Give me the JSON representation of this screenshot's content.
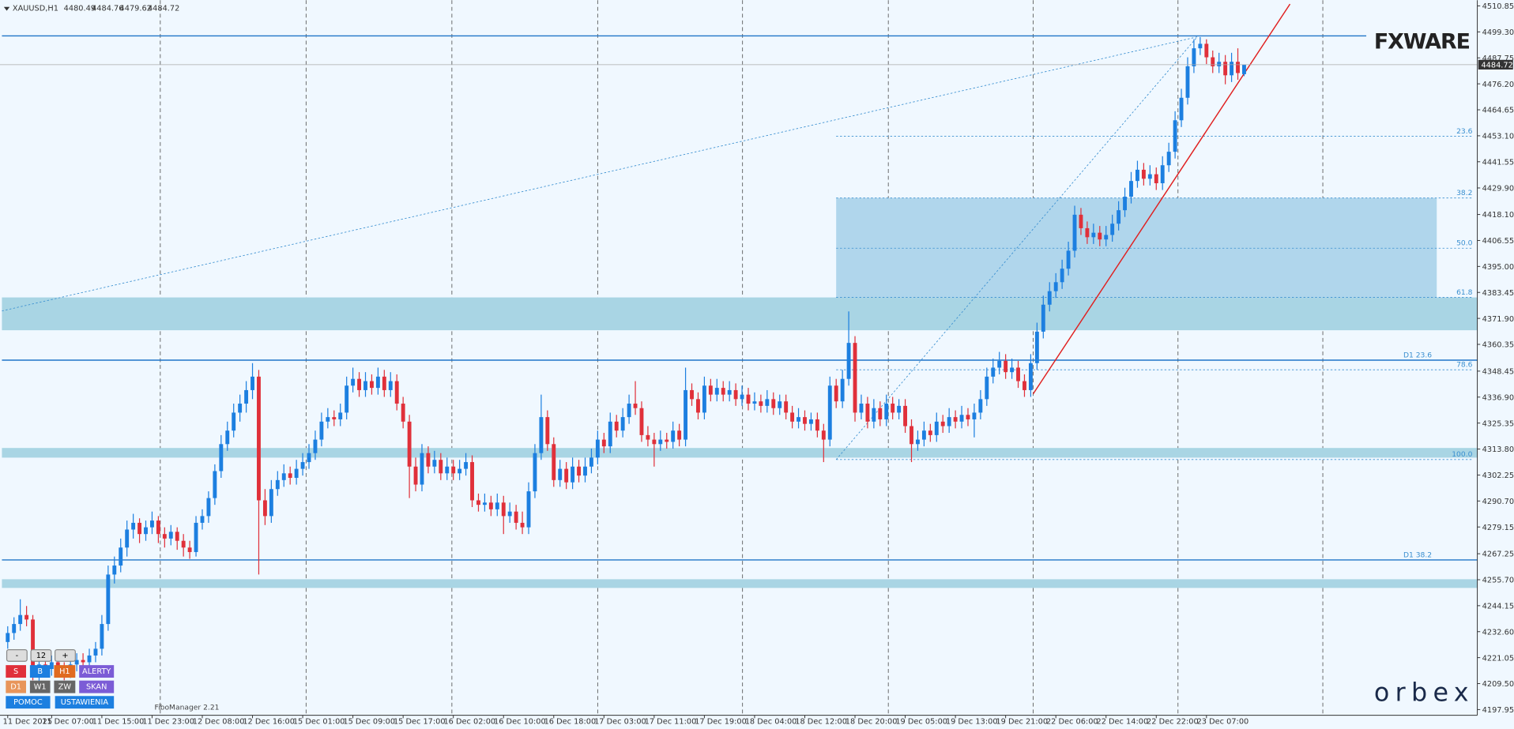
{
  "chart_data": {
    "type": "candlestick",
    "symbol": "XAUUSD,H1",
    "bull_color": "#1c7fe0",
    "bear_color": "#e0303a",
    "ylim": [
      4195.4,
      4513.4
    ],
    "yticks": [
      {
        "value": 4510.85,
        "label": "4510.85"
      },
      {
        "value": 4499.3,
        "label": "4499.30"
      },
      {
        "value": 4487.75,
        "label": "4487.75"
      },
      {
        "value": 4476.2,
        "label": "4476.20"
      },
      {
        "value": 4464.65,
        "label": "4464.65"
      },
      {
        "value": 4453.1,
        "label": "4453.10"
      },
      {
        "value": 4441.55,
        "label": "4441.55"
      },
      {
        "value": 4429.9,
        "label": "4429.90"
      },
      {
        "value": 4418.1,
        "label": "4418.10"
      },
      {
        "value": 4406.55,
        "label": "4406.55"
      },
      {
        "value": 4395,
        "label": "4395.00"
      },
      {
        "value": 4383.45,
        "label": "4383.45"
      },
      {
        "value": 4371.9,
        "label": "4371.90"
      },
      {
        "value": 4360.35,
        "label": "4360.35"
      },
      {
        "value": 4348.45,
        "label": "4348.45"
      },
      {
        "value": 4336.9,
        "label": "4336.90"
      },
      {
        "value": 4325.35,
        "label": "4325.35"
      },
      {
        "value": 4313.8,
        "label": "4313.80"
      },
      {
        "value": 4302.25,
        "label": "4302.25"
      },
      {
        "value": 4290.7,
        "label": "4290.70"
      },
      {
        "value": 4279.15,
        "label": "4279.15"
      },
      {
        "value": 4267.25,
        "label": "4267.25"
      },
      {
        "value": 4255.7,
        "label": "4255.70"
      },
      {
        "value": 4244.15,
        "label": "4244.15"
      },
      {
        "value": 4232.6,
        "label": "4232.60"
      },
      {
        "value": 4221.05,
        "label": "4221.05"
      },
      {
        "value": 4209.5,
        "label": "4209.50"
      },
      {
        "value": 4197.95,
        "label": "4197.95"
      }
    ],
    "xticks": [
      "11 Dec 2025",
      "11 Dec 07:00",
      "11 Dec 15:00",
      "11 Dec 23:00",
      "12 Dec 08:00",
      "12 Dec 16:00",
      "15 Dec 01:00",
      "15 Dec 09:00",
      "15 Dec 17:00",
      "16 Dec 02:00",
      "16 Dec 10:00",
      "16 Dec 18:00",
      "17 Dec 03:00",
      "17 Dec 11:00",
      "17 Dec 19:00",
      "18 Dec 04:00",
      "18 Dec 12:00",
      "18 Dec 20:00",
      "19 Dec 05:00",
      "19 Dec 13:00",
      "19 Dec 21:00",
      "22 Dec 06:00",
      "22 Dec 14:00",
      "22 Dec 22:00",
      "23 Dec 07:00"
    ],
    "candles": [
      [
        4228,
        4235,
        4225,
        4232
      ],
      [
        4232,
        4239,
        4229,
        4236
      ],
      [
        4236,
        4247,
        4233,
        4240
      ],
      [
        4240,
        4244,
        4235,
        4238
      ],
      [
        4238,
        4240,
        4211,
        4214
      ],
      [
        4214,
        4221,
        4210,
        4218
      ],
      [
        4218,
        4220,
        4213,
        4216
      ],
      [
        4216,
        4222,
        4213,
        4219
      ],
      [
        4219,
        4221,
        4214,
        4217
      ],
      [
        4217,
        4219,
        4211,
        4215
      ],
      [
        4215,
        4221,
        4212,
        4218
      ],
      [
        4218,
        4223,
        4215,
        4220
      ],
      [
        4220,
        4223,
        4216,
        4219
      ],
      [
        4219,
        4225,
        4216,
        4222
      ],
      [
        4222,
        4228,
        4219,
        4225
      ],
      [
        4225,
        4240,
        4222,
        4236
      ],
      [
        4236,
        4262,
        4233,
        4258
      ],
      [
        4258,
        4266,
        4254,
        4262
      ],
      [
        4262,
        4274,
        4259,
        4270
      ],
      [
        4270,
        4282,
        4266,
        4278
      ],
      [
        4278,
        4285,
        4274,
        4281
      ],
      [
        4281,
        4283,
        4272,
        4276
      ],
      [
        4276,
        4282,
        4273,
        4279
      ],
      [
        4279,
        4286,
        4276,
        4282
      ],
      [
        4282,
        4284,
        4272,
        4276
      ],
      [
        4276,
        4279,
        4270,
        4274
      ],
      [
        4274,
        4280,
        4271,
        4277
      ],
      [
        4277,
        4279,
        4269,
        4273
      ],
      [
        4273,
        4276,
        4266,
        4270
      ],
      [
        4270,
        4273,
        4265,
        4268
      ],
      [
        4268,
        4284,
        4266,
        4281
      ],
      [
        4281,
        4287,
        4278,
        4284
      ],
      [
        4284,
        4295,
        4281,
        4292
      ],
      [
        4292,
        4307,
        4289,
        4304
      ],
      [
        4304,
        4320,
        4301,
        4316
      ],
      [
        4316,
        4326,
        4313,
        4322
      ],
      [
        4322,
        4334,
        4319,
        4330
      ],
      [
        4330,
        4338,
        4326,
        4334
      ],
      [
        4334,
        4344,
        4330,
        4340
      ],
      [
        4340,
        4352,
        4336,
        4346
      ],
      [
        4346,
        4349,
        4258,
        4291
      ],
      [
        4291,
        4296,
        4280,
        4284
      ],
      [
        4284,
        4300,
        4281,
        4296
      ],
      [
        4296,
        4304,
        4293,
        4300
      ],
      [
        4300,
        4307,
        4297,
        4303
      ],
      [
        4303,
        4306,
        4298,
        4301
      ],
      [
        4301,
        4309,
        4298,
        4305
      ],
      [
        4305,
        4312,
        4302,
        4308
      ],
      [
        4308,
        4316,
        4305,
        4312
      ],
      [
        4312,
        4322,
        4309,
        4318
      ],
      [
        4318,
        4330,
        4315,
        4326
      ],
      [
        4326,
        4332,
        4323,
        4328
      ],
      [
        4328,
        4331,
        4324,
        4327
      ],
      [
        4327,
        4334,
        4324,
        4330
      ],
      [
        4330,
        4346,
        4327,
        4342
      ],
      [
        4342,
        4350,
        4339,
        4345
      ],
      [
        4345,
        4348,
        4337,
        4340
      ],
      [
        4340,
        4348,
        4337,
        4344
      ],
      [
        4344,
        4347,
        4338,
        4341
      ],
      [
        4341,
        4350,
        4338,
        4346
      ],
      [
        4346,
        4349,
        4337,
        4340
      ],
      [
        4340,
        4348,
        4337,
        4344
      ],
      [
        4344,
        4347,
        4331,
        4334
      ],
      [
        4334,
        4337,
        4323,
        4326
      ],
      [
        4326,
        4329,
        4292,
        4306
      ],
      [
        4306,
        4310,
        4295,
        4298
      ],
      [
        4298,
        4316,
        4295,
        4312
      ],
      [
        4312,
        4315,
        4303,
        4306
      ],
      [
        4306,
        4313,
        4303,
        4309
      ],
      [
        4309,
        4312,
        4300,
        4303
      ],
      [
        4303,
        4310,
        4300,
        4306
      ],
      [
        4306,
        4309,
        4300,
        4303
      ],
      [
        4303,
        4309,
        4300,
        4305
      ],
      [
        4305,
        4312,
        4302,
        4308
      ],
      [
        4308,
        4311,
        4288,
        4291
      ],
      [
        4291,
        4294,
        4286,
        4289
      ],
      [
        4289,
        4294,
        4286,
        4290
      ],
      [
        4290,
        4293,
        4284,
        4287
      ],
      [
        4287,
        4294,
        4284,
        4290
      ],
      [
        4290,
        4293,
        4276,
        4284
      ],
      [
        4284,
        4290,
        4281,
        4286
      ],
      [
        4286,
        4289,
        4278,
        4281
      ],
      [
        4281,
        4286,
        4276,
        4279
      ],
      [
        4279,
        4299,
        4276,
        4295
      ],
      [
        4295,
        4316,
        4292,
        4312
      ],
      [
        4312,
        4338,
        4309,
        4328
      ],
      [
        4328,
        4331,
        4313,
        4316
      ],
      [
        4316,
        4319,
        4297,
        4300
      ],
      [
        4300,
        4309,
        4297,
        4305
      ],
      [
        4305,
        4308,
        4296,
        4299
      ],
      [
        4299,
        4310,
        4296,
        4306
      ],
      [
        4306,
        4309,
        4299,
        4302
      ],
      [
        4302,
        4310,
        4299,
        4306
      ],
      [
        4306,
        4314,
        4303,
        4310
      ],
      [
        4310,
        4322,
        4307,
        4318
      ],
      [
        4318,
        4321,
        4312,
        4315
      ],
      [
        4315,
        4330,
        4312,
        4326
      ],
      [
        4326,
        4329,
        4319,
        4322
      ],
      [
        4322,
        4332,
        4319,
        4328
      ],
      [
        4328,
        4338,
        4325,
        4334
      ],
      [
        4334,
        4344,
        4329,
        4332
      ],
      [
        4332,
        4335,
        4317,
        4320
      ],
      [
        4320,
        4324,
        4315,
        4318
      ],
      [
        4318,
        4321,
        4306,
        4316
      ],
      [
        4316,
        4322,
        4313,
        4318
      ],
      [
        4318,
        4321,
        4314,
        4317
      ],
      [
        4317,
        4326,
        4314,
        4322
      ],
      [
        4322,
        4325,
        4315,
        4318
      ],
      [
        4318,
        4350,
        4315,
        4340
      ],
      [
        4340,
        4343,
        4333,
        4336
      ],
      [
        4336,
        4339,
        4327,
        4330
      ],
      [
        4330,
        4346,
        4327,
        4342
      ],
      [
        4342,
        4345,
        4335,
        4338
      ],
      [
        4338,
        4345,
        4335,
        4341
      ],
      [
        4341,
        4344,
        4335,
        4338
      ],
      [
        4338,
        4344,
        4335,
        4340
      ],
      [
        4340,
        4343,
        4333,
        4336
      ],
      [
        4336,
        4342,
        4333,
        4338
      ],
      [
        4338,
        4341,
        4331,
        4334
      ],
      [
        4334,
        4339,
        4331,
        4335
      ],
      [
        4335,
        4338,
        4330,
        4333
      ],
      [
        4333,
        4340,
        4330,
        4336
      ],
      [
        4336,
        4339,
        4329,
        4332
      ],
      [
        4332,
        4338,
        4329,
        4335
      ],
      [
        4335,
        4338,
        4327,
        4330
      ],
      [
        4330,
        4333,
        4323,
        4326
      ],
      [
        4326,
        4332,
        4323,
        4328
      ],
      [
        4328,
        4331,
        4322,
        4325
      ],
      [
        4325,
        4330,
        4322,
        4327
      ],
      [
        4327,
        4330,
        4319,
        4322
      ],
      [
        4322,
        4325,
        4308,
        4318
      ],
      [
        4318,
        4346,
        4315,
        4342
      ],
      [
        4342,
        4345,
        4332,
        4335
      ],
      [
        4335,
        4349,
        4332,
        4345
      ],
      [
        4345,
        4375,
        4342,
        4361
      ],
      [
        4361,
        4364,
        4326,
        4330
      ],
      [
        4330,
        4338,
        4327,
        4334
      ],
      [
        4334,
        4337,
        4323,
        4326
      ],
      [
        4326,
        4336,
        4323,
        4332
      ],
      [
        4332,
        4335,
        4324,
        4327
      ],
      [
        4327,
        4338,
        4324,
        4334
      ],
      [
        4334,
        4337,
        4327,
        4330
      ],
      [
        4330,
        4336,
        4327,
        4333
      ],
      [
        4333,
        4336,
        4321,
        4324
      ],
      [
        4324,
        4327,
        4308,
        4316
      ],
      [
        4316,
        4322,
        4313,
        4318
      ],
      [
        4318,
        4326,
        4315,
        4322
      ],
      [
        4322,
        4325,
        4317,
        4320
      ],
      [
        4320,
        4330,
        4317,
        4326
      ],
      [
        4326,
        4329,
        4321,
        4324
      ],
      [
        4324,
        4332,
        4321,
        4328
      ],
      [
        4328,
        4331,
        4323,
        4326
      ],
      [
        4326,
        4333,
        4323,
        4329
      ],
      [
        4329,
        4332,
        4324,
        4327
      ],
      [
        4327,
        4334,
        4319,
        4330
      ],
      [
        4330,
        4340,
        4327,
        4336
      ],
      [
        4336,
        4350,
        4333,
        4346
      ],
      [
        4346,
        4354,
        4343,
        4350
      ],
      [
        4350,
        4357,
        4347,
        4353
      ],
      [
        4353,
        4356,
        4345,
        4348
      ],
      [
        4348,
        4354,
        4345,
        4350
      ],
      [
        4350,
        4353,
        4341,
        4344
      ],
      [
        4344,
        4347,
        4337,
        4340
      ],
      [
        4340,
        4356,
        4337,
        4352
      ],
      [
        4352,
        4370,
        4349,
        4366
      ],
      [
        4366,
        4382,
        4363,
        4378
      ],
      [
        4378,
        4388,
        4375,
        4384
      ],
      [
        4384,
        4392,
        4381,
        4388
      ],
      [
        4388,
        4398,
        4385,
        4394
      ],
      [
        4394,
        4406,
        4391,
        4402
      ],
      [
        4402,
        4422,
        4399,
        4418
      ],
      [
        4418,
        4421,
        4409,
        4412
      ],
      [
        4412,
        4415,
        4405,
        4408
      ],
      [
        4408,
        4414,
        4405,
        4410
      ],
      [
        4410,
        4413,
        4404,
        4407
      ],
      [
        4407,
        4413,
        4404,
        4409
      ],
      [
        4409,
        4418,
        4406,
        4414
      ],
      [
        4414,
        4424,
        4411,
        4420
      ],
      [
        4420,
        4430,
        4417,
        4426
      ],
      [
        4426,
        4437,
        4423,
        4433
      ],
      [
        4433,
        4442,
        4430,
        4438
      ],
      [
        4438,
        4441,
        4431,
        4434
      ],
      [
        4434,
        4440,
        4431,
        4436
      ],
      [
        4436,
        4439,
        4429,
        4432
      ],
      [
        4432,
        4444,
        4429,
        4440
      ],
      [
        4440,
        4450,
        4437,
        4446
      ],
      [
        4446,
        4464,
        4443,
        4460
      ],
      [
        4460,
        4474,
        4457,
        4470
      ],
      [
        4470,
        4488,
        4467,
        4484
      ],
      [
        4484,
        4496,
        4481,
        4492
      ],
      [
        4492,
        4497,
        4489,
        4494
      ],
      [
        4494,
        4496,
        4485,
        4488
      ],
      [
        4488,
        4491,
        4481,
        4484
      ],
      [
        4484,
        4490,
        4481,
        4486
      ],
      [
        4486,
        4489,
        4476,
        4480
      ],
      [
        4480,
        4490,
        4477,
        4486
      ],
      [
        4486,
        4492,
        4478,
        4481
      ],
      [
        4480.49,
        4484.76,
        4479.62,
        4484.72
      ]
    ],
    "fib_labels": [
      "23.6",
      "38.2",
      "50.0",
      "61.8",
      "78.6",
      "100.0",
      "D1 23.6",
      "D1 38.2"
    ],
    "logo": "FXWARE",
    "brand": "orbex",
    "indicator": "FiboManager 2.21",
    "buttons": [
      "-",
      "12",
      "+",
      "S",
      "B",
      "H1",
      "ALERTY",
      "D1",
      "W1",
      "ZW",
      "SKAN",
      "POMOC",
      "USTAWIENIA"
    ]
  }
}
